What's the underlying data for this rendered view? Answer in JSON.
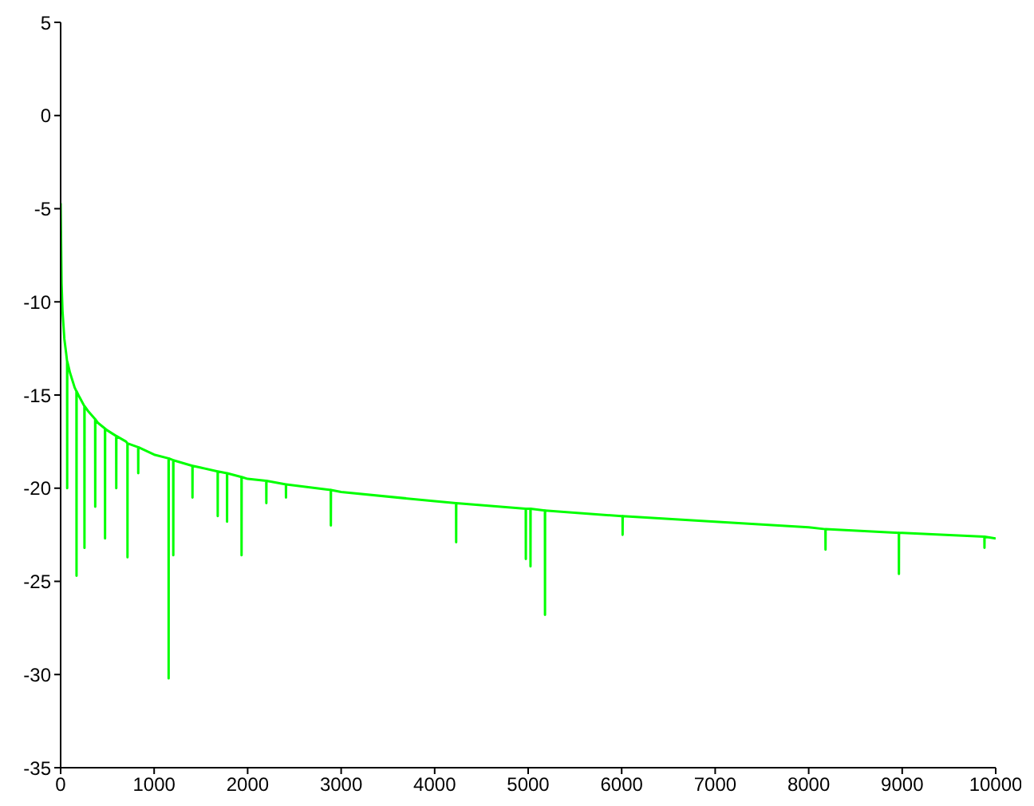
{
  "chart_data": {
    "type": "line",
    "xlim": [
      0,
      10000
    ],
    "ylim": [
      -35,
      5
    ],
    "xticks": [
      0,
      1000,
      2000,
      3000,
      4000,
      5000,
      6000,
      7000,
      8000,
      9000,
      10000
    ],
    "yticks": [
      -35,
      -30,
      -25,
      -20,
      -15,
      -10,
      -5,
      0,
      5
    ],
    "grid": false,
    "marker": "none",
    "line_style": "solid",
    "series": [
      {
        "color": "#00ff00",
        "x": [
          0,
          10,
          20,
          40,
          60,
          69,
          70,
          71,
          100,
          150,
          169,
          170,
          171,
          200,
          254,
          255,
          256,
          300,
          369,
          370,
          371,
          400,
          474,
          475,
          476,
          500,
          594,
          595,
          596,
          700,
          714,
          715,
          716,
          829,
          830,
          831,
          1000,
          1154,
          1155,
          1156,
          1204,
          1205,
          1206,
          1409,
          1410,
          1411,
          1500,
          1679,
          1680,
          1681,
          1779,
          1780,
          1781,
          1934,
          1935,
          1936,
          2000,
          2199,
          2200,
          2201,
          2409,
          2410,
          2411,
          2889,
          2890,
          2891,
          3000,
          4000,
          4229,
          4230,
          4231,
          4974,
          4975,
          4976,
          5024,
          5025,
          5026,
          5179,
          5180,
          5181,
          6000,
          6009,
          6010,
          6011,
          7000,
          8000,
          8179,
          8180,
          8181,
          8964,
          8965,
          8966,
          9000,
          9879,
          9880,
          9881,
          10000
        ],
        "values": [
          -4.7,
          -9,
          -10.5,
          -12,
          -12.8,
          -13.2,
          -20,
          -13.2,
          -13.8,
          -14.6,
          -14.8,
          -24.7,
          -14.8,
          -15.1,
          -15.6,
          -23.2,
          -15.6,
          -15.9,
          -16.3,
          -21,
          -16.3,
          -16.5,
          -16.8,
          -22.7,
          -16.8,
          -16.9,
          -17.2,
          -20,
          -17.2,
          -17.5,
          -17.6,
          -23.7,
          -17.6,
          -17.8,
          -19.2,
          -17.8,
          -18.2,
          -18.4,
          -30.2,
          -18.4,
          -18.5,
          -23.6,
          -18.5,
          -18.8,
          -20.5,
          -18.8,
          -18.9,
          -19.1,
          -21.5,
          -19.1,
          -19.2,
          -21.8,
          -19.2,
          -19.4,
          -23.6,
          -19.4,
          -19.5,
          -19.6,
          -20.8,
          -19.6,
          -19.8,
          -20.5,
          -19.8,
          -20.1,
          -22,
          -20.1,
          -20.2,
          -20.7,
          -20.8,
          -22.9,
          -20.8,
          -21.1,
          -23.8,
          -21.1,
          -21.1,
          -24.2,
          -21.1,
          -21.2,
          -26.8,
          -21.2,
          -21.5,
          -21.5,
          -22.5,
          -21.5,
          -21.8,
          -22.1,
          -22.2,
          -23.3,
          -22.2,
          -22.4,
          -24.6,
          -22.4,
          -22.4,
          -22.6,
          -23.2,
          -22.6,
          -22.7
        ]
      }
    ]
  }
}
